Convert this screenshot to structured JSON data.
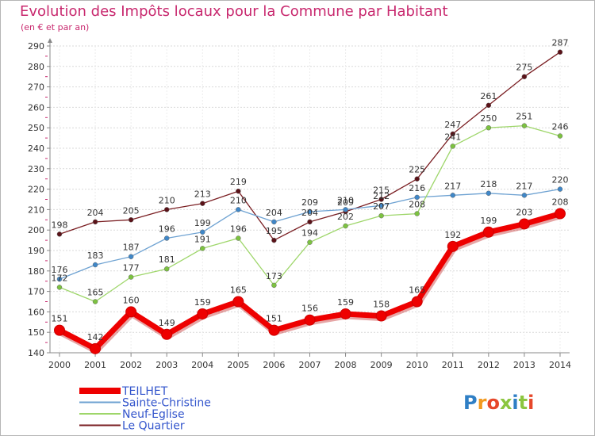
{
  "header": {
    "title": "Evolution des Impôts locaux pour la Commune par Habitant",
    "subtitle": "(en € et par an)"
  },
  "logo": {
    "text": "Proxiti"
  },
  "chart_data": {
    "type": "line",
    "title": "Evolution des Impôts locaux pour la Commune par Habitant",
    "subtitle": "(en € et par an)",
    "xlabel": "",
    "ylabel": "",
    "ylim": [
      140,
      290
    ],
    "yticks": [
      140,
      150,
      160,
      170,
      180,
      190,
      200,
      210,
      220,
      230,
      240,
      250,
      260,
      270,
      280,
      290
    ],
    "grid": "horizontal",
    "legend": "bottom-left",
    "categories": [
      "2000",
      "2001",
      "2002",
      "2003",
      "2004",
      "2005",
      "2006",
      "2007",
      "2008",
      "2009",
      "2010",
      "2011",
      "2012",
      "2013",
      "2014"
    ],
    "series": [
      {
        "name": "Le Quartier",
        "color": "#7a1e22",
        "marker": "#5a1218",
        "values": [
          198,
          204,
          205,
          210,
          213,
          219,
          195,
          204,
          209,
          215,
          225,
          247,
          261,
          275,
          287
        ],
        "labels": [
          "198",
          "204",
          "205",
          "210",
          "213",
          "219",
          "195",
          "204",
          "209",
          "215",
          "225",
          "247",
          "261",
          "275",
          "287"
        ]
      },
      {
        "name": "Sainte-Christine",
        "color": "#6ea2d2",
        "marker": "#3f87c8",
        "values": [
          176,
          183,
          187,
          196,
          199,
          210,
          204,
          209,
          210,
          212,
          216,
          217,
          218,
          217,
          220
        ],
        "labels": [
          "176",
          "183",
          "187",
          "196",
          "199",
          "210",
          "204",
          "209",
          "210",
          "212",
          "216",
          "217",
          "218",
          "217",
          "220"
        ]
      },
      {
        "name": "Neuf-Eglise",
        "color": "#9ed66a",
        "marker": "#7cc240",
        "values": [
          172,
          165,
          177,
          181,
          191,
          196,
          173,
          194,
          202,
          207,
          208,
          241,
          250,
          251,
          246
        ],
        "labels": [
          "172",
          "165",
          "177",
          "181",
          "191",
          "196",
          "173",
          "194",
          "202",
          "207",
          "208",
          "241",
          "250",
          "251",
          "246"
        ]
      },
      {
        "name": "TEILHET",
        "color": "#ee0000",
        "marker": "#ee0000",
        "values": [
          151,
          142,
          160,
          149,
          159,
          165,
          151,
          156,
          159,
          158,
          165,
          192,
          199,
          203,
          208
        ],
        "labels": [
          "151",
          "142",
          "160",
          "149",
          "159",
          "165",
          "151",
          "156",
          "159",
          "158",
          "165",
          "192",
          "199",
          "203",
          "208"
        ]
      }
    ],
    "legend_entries": [
      {
        "name": "TEILHET",
        "color": "#ee0000"
      },
      {
        "name": "Sainte-Christine",
        "color": "#6ea2d2"
      },
      {
        "name": "Neuf-Eglise",
        "color": "#9ed66a"
      },
      {
        "name": "Le Quartier",
        "color": "#7a1e22"
      }
    ]
  }
}
